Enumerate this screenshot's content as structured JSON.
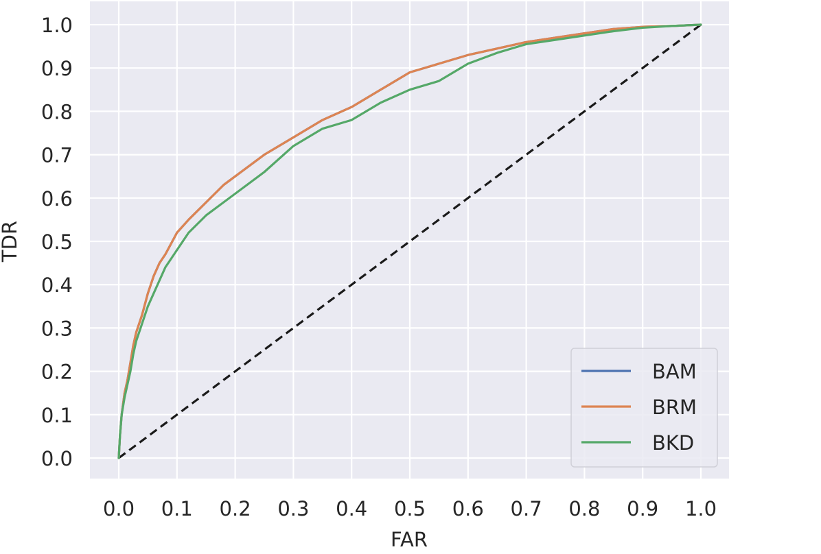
{
  "chart_data": {
    "type": "line",
    "title": "",
    "xlabel": "FAR",
    "ylabel": "TDR",
    "xlim": [
      -0.05,
      1.05
    ],
    "ylim": [
      -0.05,
      1.05
    ],
    "xticks": [
      "0.0",
      "0.1",
      "0.2",
      "0.3",
      "0.4",
      "0.5",
      "0.6",
      "0.7",
      "0.8",
      "0.9",
      "1.0"
    ],
    "yticks": [
      "0.0",
      "0.1",
      "0.2",
      "0.3",
      "0.4",
      "0.5",
      "0.6",
      "0.7",
      "0.8",
      "0.9",
      "1.0"
    ],
    "grid": true,
    "background": "#eaeaf2",
    "legend_position": "lower-right",
    "series": [
      {
        "name": "BAM",
        "color": "#4c72b0",
        "x": [
          0,
          0.002,
          0.005,
          0.01,
          0.015,
          0.02,
          0.025,
          0.03,
          0.04,
          0.05,
          0.06,
          0.07,
          0.08,
          0.1,
          0.12,
          0.15,
          0.18,
          0.2,
          0.25,
          0.3,
          0.35,
          0.4,
          0.45,
          0.5,
          0.55,
          0.6,
          0.65,
          0.7,
          0.75,
          0.8,
          0.85,
          0.9,
          0.95,
          1.0
        ],
        "y": [
          0,
          0.05,
          0.1,
          0.15,
          0.18,
          0.22,
          0.26,
          0.29,
          0.33,
          0.38,
          0.42,
          0.45,
          0.47,
          0.52,
          0.55,
          0.59,
          0.63,
          0.65,
          0.7,
          0.74,
          0.78,
          0.81,
          0.85,
          0.89,
          0.91,
          0.93,
          0.945,
          0.96,
          0.97,
          0.98,
          0.99,
          0.995,
          0.997,
          1.0
        ]
      },
      {
        "name": "BRM",
        "color": "#dd8452",
        "x": [
          0,
          0.002,
          0.005,
          0.01,
          0.015,
          0.02,
          0.025,
          0.03,
          0.04,
          0.05,
          0.06,
          0.07,
          0.08,
          0.1,
          0.12,
          0.15,
          0.18,
          0.2,
          0.25,
          0.3,
          0.35,
          0.4,
          0.45,
          0.5,
          0.55,
          0.6,
          0.65,
          0.7,
          0.75,
          0.8,
          0.85,
          0.9,
          0.95,
          1.0
        ],
        "y": [
          0,
          0.05,
          0.1,
          0.15,
          0.18,
          0.22,
          0.26,
          0.29,
          0.33,
          0.38,
          0.42,
          0.45,
          0.47,
          0.52,
          0.55,
          0.59,
          0.63,
          0.65,
          0.7,
          0.74,
          0.78,
          0.81,
          0.85,
          0.89,
          0.91,
          0.93,
          0.945,
          0.96,
          0.97,
          0.98,
          0.99,
          0.995,
          0.997,
          1.0
        ]
      },
      {
        "name": "BKD",
        "color": "#55a868",
        "x": [
          0,
          0.002,
          0.005,
          0.01,
          0.015,
          0.02,
          0.025,
          0.03,
          0.04,
          0.05,
          0.06,
          0.07,
          0.08,
          0.1,
          0.12,
          0.15,
          0.18,
          0.2,
          0.25,
          0.3,
          0.35,
          0.4,
          0.45,
          0.5,
          0.55,
          0.6,
          0.65,
          0.7,
          0.75,
          0.8,
          0.85,
          0.9,
          0.95,
          1.0
        ],
        "y": [
          0,
          0.05,
          0.1,
          0.14,
          0.17,
          0.2,
          0.24,
          0.27,
          0.31,
          0.35,
          0.38,
          0.41,
          0.44,
          0.48,
          0.52,
          0.56,
          0.59,
          0.61,
          0.66,
          0.72,
          0.76,
          0.78,
          0.82,
          0.85,
          0.87,
          0.91,
          0.935,
          0.955,
          0.965,
          0.975,
          0.985,
          0.993,
          0.997,
          1.0
        ]
      }
    ],
    "reference_line": {
      "x": [
        0,
        1
      ],
      "y": [
        0,
        1
      ],
      "color": "#1a1a1a",
      "style": "dashed"
    }
  }
}
